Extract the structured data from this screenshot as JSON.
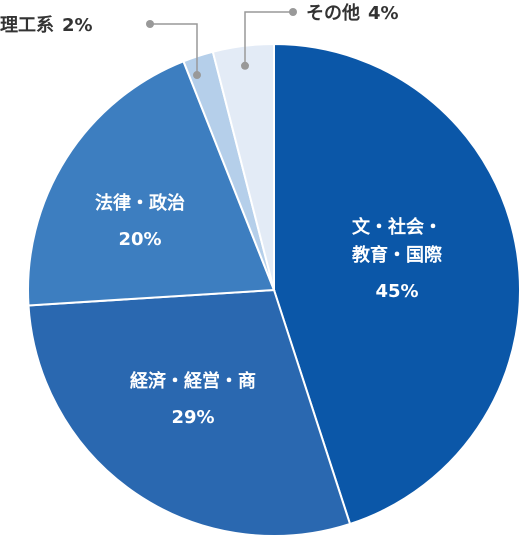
{
  "chart_data": {
    "type": "pie",
    "categories": [
      "文・社会・教育・国際",
      "経済・経営・商",
      "法律・政治",
      "理工系",
      "その他"
    ],
    "values": [
      45,
      29,
      20,
      2,
      4
    ],
    "value_labels": [
      "45%",
      "29%",
      "20%",
      "2%",
      "4%"
    ],
    "colors": [
      "#0b57a8",
      "#2a68b0",
      "#3d7ec0",
      "#b5cfea",
      "#e3ebf6"
    ]
  }
}
